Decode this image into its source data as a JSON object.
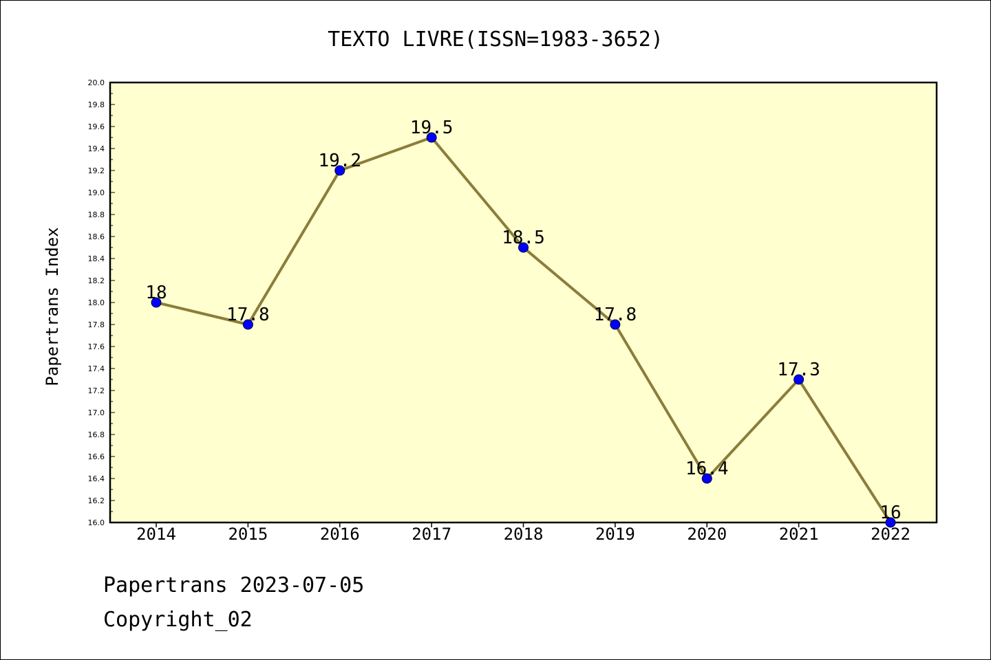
{
  "chart_data": {
    "type": "line",
    "title": "TEXTO LIVRE(ISSN=1983-3652)",
    "xlabel": "",
    "ylabel": "Papertrans Index",
    "x": [
      "2014",
      "2015",
      "2016",
      "2017",
      "2018",
      "2019",
      "2020",
      "2021",
      "2022"
    ],
    "series": [
      {
        "values": [
          18,
          17.8,
          19.2,
          19.5,
          18.5,
          17.8,
          16.4,
          17.3,
          16
        ],
        "labels": [
          "18",
          "17.8",
          "19.2",
          "19.5",
          "18.5",
          "17.8",
          "16.4",
          "17.3",
          "16"
        ]
      }
    ],
    "ylim": [
      16.0,
      20.0
    ],
    "yticks": [
      "16.0",
      "16.2",
      "16.4",
      "16.6",
      "16.8",
      "17.0",
      "17.2",
      "17.4",
      "17.6",
      "17.8",
      "18.0",
      "18.2",
      "18.4",
      "18.6",
      "18.8",
      "19.0",
      "19.2",
      "19.4",
      "19.6",
      "19.8",
      "20.0"
    ],
    "grid": false,
    "legend": "none",
    "colors": {
      "line": "#8b7d3a",
      "marker": "#0000ff",
      "plot_bg": "#ffffd0"
    }
  },
  "footer": {
    "line1": "Papertrans 2023-07-05",
    "line2": "Copyright_02"
  }
}
